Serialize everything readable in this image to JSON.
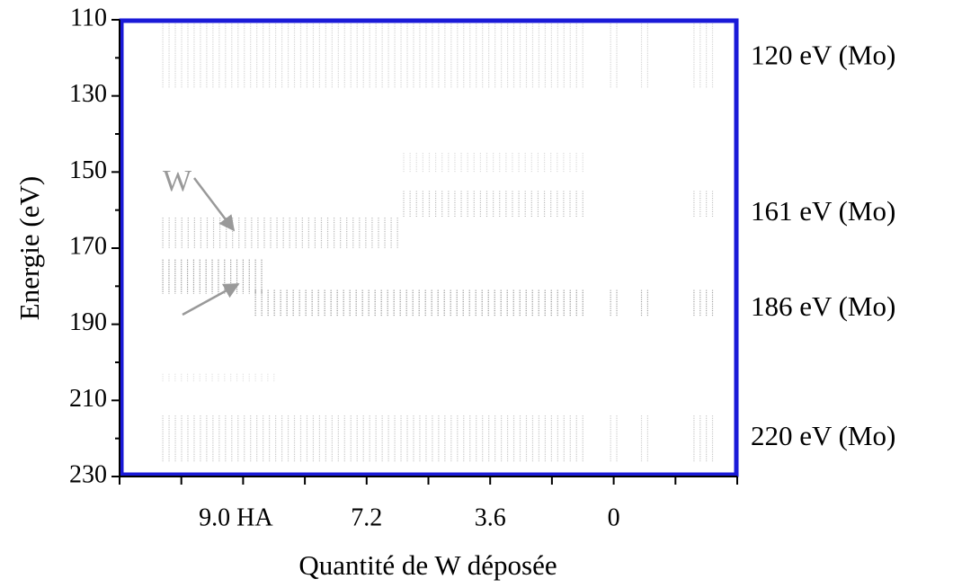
{
  "chart_data": {
    "type": "image",
    "ylabel": "Energie (eV)",
    "xlabel": "Quantité de W déposée",
    "ylim": [
      230,
      110
    ],
    "yticks": [
      110,
      130,
      150,
      170,
      190,
      210,
      230
    ],
    "yminorticks": [
      120,
      140,
      160,
      180,
      200,
      220
    ],
    "categories": [
      null,
      null,
      "9.0 HA",
      null,
      "7.2",
      null,
      "3.6",
      null,
      "0",
      null,
      null
    ],
    "frame_color": "#1a1ad8",
    "stripe_color": "#555555",
    "right_labels": [
      {
        "value": 120,
        "label": "120 eV (Mo)"
      },
      {
        "value": 161,
        "label": "161 eV (Mo)"
      },
      {
        "value": 186,
        "label": "186 eV (Mo)"
      },
      {
        "value": 220,
        "label": "220 eV (Mo)"
      }
    ],
    "annotation": "W",
    "bands": [
      {
        "x": [
          0.7,
          7.5
        ],
        "energy": [
          111,
          128
        ],
        "intensity": 0.3
      },
      {
        "x": [
          7.95,
          8.05
        ],
        "energy": [
          111,
          128
        ],
        "intensity": 0.3
      },
      {
        "x": [
          8.45,
          8.55
        ],
        "energy": [
          111,
          128
        ],
        "intensity": 0.3
      },
      {
        "x": [
          9.3,
          9.6
        ],
        "energy": [
          111,
          128
        ],
        "intensity": 0.3
      },
      {
        "x": [
          4.6,
          7.5
        ],
        "energy": [
          145,
          150
        ],
        "intensity": 0.25
      },
      {
        "x": [
          4.6,
          7.5
        ],
        "energy": [
          155,
          162
        ],
        "intensity": 0.45
      },
      {
        "x": [
          9.3,
          9.6
        ],
        "energy": [
          155,
          162
        ],
        "intensity": 0.4
      },
      {
        "x": [
          0.7,
          4.5
        ],
        "energy": [
          162,
          170
        ],
        "intensity": 0.5
      },
      {
        "x": [
          0.7,
          2.3
        ],
        "energy": [
          173,
          182
        ],
        "intensity": 0.75
      },
      {
        "x": [
          2.2,
          7.5
        ],
        "energy": [
          181,
          188
        ],
        "intensity": 0.75
      },
      {
        "x": [
          7.95,
          8.05
        ],
        "energy": [
          181,
          188
        ],
        "intensity": 0.65
      },
      {
        "x": [
          8.45,
          8.55
        ],
        "energy": [
          181,
          188
        ],
        "intensity": 0.65
      },
      {
        "x": [
          9.3,
          9.6
        ],
        "energy": [
          181,
          188
        ],
        "intensity": 0.65
      },
      {
        "x": [
          0.7,
          2.5
        ],
        "energy": [
          203,
          205
        ],
        "intensity": 0.2
      },
      {
        "x": [
          0.7,
          7.5
        ],
        "energy": [
          214,
          226
        ],
        "intensity": 0.4
      },
      {
        "x": [
          7.95,
          8.05
        ],
        "energy": [
          214,
          226
        ],
        "intensity": 0.35
      },
      {
        "x": [
          8.45,
          8.55
        ],
        "energy": [
          214,
          226
        ],
        "intensity": 0.35
      },
      {
        "x": [
          9.3,
          9.6
        ],
        "energy": [
          214,
          226
        ],
        "intensity": 0.4
      }
    ]
  }
}
